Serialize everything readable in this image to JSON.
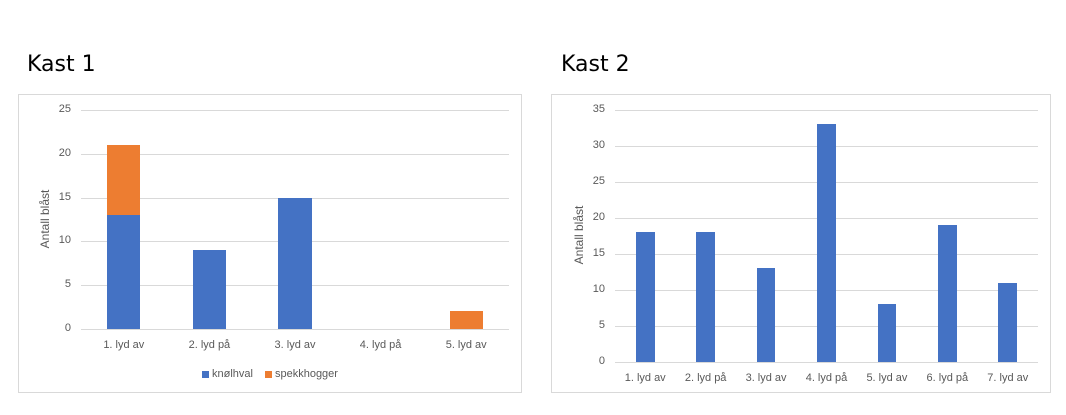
{
  "titles": {
    "chart1": "Kast 1",
    "chart2": "Kast 2"
  },
  "colors": {
    "knolhval": "#4472c4",
    "spekkhogger": "#ed7d31",
    "grid": "#d9d9d9",
    "axis_text": "#595959"
  },
  "chart_data": [
    {
      "type": "bar",
      "stacked": true,
      "title": "Kast 1",
      "xlabel": "",
      "ylabel": "Antall blåst",
      "categories": [
        "1. lyd av",
        "2. lyd på",
        "3. lyd av",
        "4. lyd på",
        "5. lyd av"
      ],
      "series": [
        {
          "name": "knølhval",
          "values": [
            13,
            9,
            15,
            0,
            0
          ]
        },
        {
          "name": "spekkhogger",
          "values": [
            8,
            0,
            0,
            0,
            2
          ]
        }
      ],
      "yticks": [
        "0",
        "5",
        "10",
        "15",
        "20",
        "25"
      ],
      "ylim": [
        0,
        25
      ],
      "grid": true,
      "legend_position": "bottom"
    },
    {
      "type": "bar",
      "title": "Kast 2",
      "xlabel": "",
      "ylabel": "Antall blåst",
      "categories": [
        "1. lyd av",
        "2. lyd på",
        "3. lyd av",
        "4. lyd på",
        "5. lyd av",
        "6. lyd på",
        "7. lyd av"
      ],
      "values": [
        18,
        18,
        13,
        33,
        8,
        19,
        11
      ],
      "yticks": [
        "0",
        "5",
        "10",
        "15",
        "20",
        "25",
        "30",
        "35"
      ],
      "ylim": [
        0,
        35
      ],
      "grid": true,
      "legend_position": "none"
    }
  ]
}
